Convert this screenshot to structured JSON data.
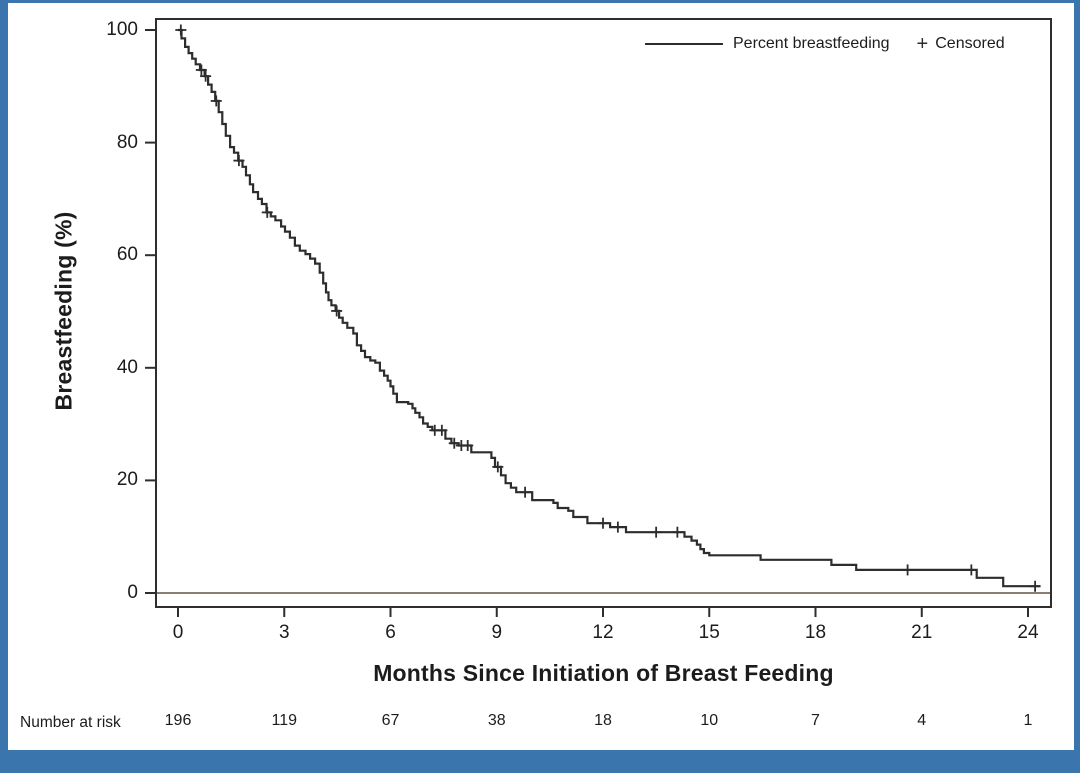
{
  "figure": {
    "accent_color": "#3a76ad",
    "background_color": "#ffffff",
    "axis_color": "#2e2e2e",
    "text_color": "#1c1c1c"
  },
  "chart_data": {
    "type": "line",
    "subtype": "kaplan-meier-step-curve",
    "title": "",
    "xlabel": "Months Since Initiation of Breast Feeding",
    "ylabel": "Breastfeeding (%)",
    "xlim": [
      -0.65,
      24.7
    ],
    "ylim": [
      0,
      100
    ],
    "x_ticks": [
      0,
      3,
      6,
      9,
      12,
      15,
      18,
      21,
      24
    ],
    "y_ticks": [
      0,
      20,
      40,
      60,
      80,
      100
    ],
    "grid": "off",
    "legend": {
      "position": "top-right",
      "series_label": "Percent breastfeeding",
      "censored_marker": "+",
      "censored_label": "Censored"
    },
    "baseline_color": "#8a7d72",
    "series": [
      {
        "name": "Percent breastfeeding",
        "color": "#2d2d2d",
        "start": [
          0,
          100
        ],
        "end_time": 24.35,
        "drops": [
          [
            0.1,
            98.5
          ],
          [
            0.2,
            97.0
          ],
          [
            0.3,
            95.9
          ],
          [
            0.4,
            94.9
          ],
          [
            0.5,
            93.9
          ],
          [
            0.62,
            92.9
          ],
          [
            0.75,
            91.8
          ],
          [
            0.85,
            90.3
          ],
          [
            0.95,
            89.0
          ],
          [
            1.05,
            87.4
          ],
          [
            1.15,
            85.4
          ],
          [
            1.25,
            83.3
          ],
          [
            1.35,
            81.2
          ],
          [
            1.47,
            79.2
          ],
          [
            1.58,
            78.2
          ],
          [
            1.7,
            76.8
          ],
          [
            1.82,
            75.7
          ],
          [
            1.92,
            74.2
          ],
          [
            2.03,
            72.6
          ],
          [
            2.12,
            71.2
          ],
          [
            2.26,
            70.0
          ],
          [
            2.37,
            69.1
          ],
          [
            2.5,
            67.6
          ],
          [
            2.62,
            66.9
          ],
          [
            2.75,
            66.2
          ],
          [
            2.91,
            65.1
          ],
          [
            3.02,
            64.2
          ],
          [
            3.16,
            63.1
          ],
          [
            3.3,
            61.7
          ],
          [
            3.44,
            60.8
          ],
          [
            3.6,
            60.2
          ],
          [
            3.73,
            59.4
          ],
          [
            3.87,
            58.5
          ],
          [
            4.0,
            56.9
          ],
          [
            4.1,
            55.0
          ],
          [
            4.18,
            53.4
          ],
          [
            4.25,
            52.0
          ],
          [
            4.33,
            51.1
          ],
          [
            4.45,
            50.1
          ],
          [
            4.55,
            48.9
          ],
          [
            4.65,
            48.0
          ],
          [
            4.78,
            47.1
          ],
          [
            4.95,
            46.1
          ],
          [
            5.05,
            44.0
          ],
          [
            5.17,
            43.0
          ],
          [
            5.28,
            41.9
          ],
          [
            5.43,
            41.3
          ],
          [
            5.57,
            40.9
          ],
          [
            5.7,
            39.5
          ],
          [
            5.82,
            38.6
          ],
          [
            5.92,
            37.7
          ],
          [
            6.0,
            36.7
          ],
          [
            6.08,
            35.4
          ],
          [
            6.18,
            33.9
          ],
          [
            6.5,
            33.6
          ],
          [
            6.62,
            32.8
          ],
          [
            6.7,
            32.0
          ],
          [
            6.82,
            31.2
          ],
          [
            6.92,
            30.1
          ],
          [
            7.05,
            29.5
          ],
          [
            7.18,
            28.9
          ],
          [
            7.55,
            27.4
          ],
          [
            7.72,
            26.6
          ],
          [
            7.92,
            26.2
          ],
          [
            8.28,
            25.0
          ],
          [
            8.85,
            24.0
          ],
          [
            8.95,
            22.4
          ],
          [
            9.12,
            20.9
          ],
          [
            9.25,
            19.5
          ],
          [
            9.4,
            18.7
          ],
          [
            9.55,
            17.9
          ],
          [
            10.0,
            16.5
          ],
          [
            10.6,
            16.0
          ],
          [
            10.72,
            15.1
          ],
          [
            11.02,
            14.6
          ],
          [
            11.16,
            13.5
          ],
          [
            11.56,
            12.4
          ],
          [
            12.2,
            11.7
          ],
          [
            12.65,
            10.8
          ],
          [
            14.3,
            10.0
          ],
          [
            14.5,
            9.3
          ],
          [
            14.65,
            8.6
          ],
          [
            14.75,
            7.8
          ],
          [
            14.85,
            7.1
          ],
          [
            15.0,
            6.7
          ],
          [
            16.45,
            5.9
          ],
          [
            18.45,
            5.0
          ],
          [
            19.15,
            4.1
          ],
          [
            22.55,
            2.7
          ],
          [
            23.3,
            1.2
          ]
        ]
      }
    ],
    "censor_times": [
      0.08,
      0.66,
      0.78,
      1.08,
      1.72,
      2.52,
      4.48,
      7.25,
      7.45,
      7.8,
      8.0,
      8.18,
      9.03,
      9.8,
      12.0,
      12.42,
      13.5,
      14.1,
      20.6,
      22.4,
      24.2
    ],
    "at_risk": {
      "label": "Number at risk",
      "times": [
        0,
        3,
        6,
        9,
        12,
        15,
        18,
        21,
        24
      ],
      "counts": [
        196,
        119,
        67,
        38,
        18,
        10,
        7,
        4,
        1
      ]
    }
  }
}
